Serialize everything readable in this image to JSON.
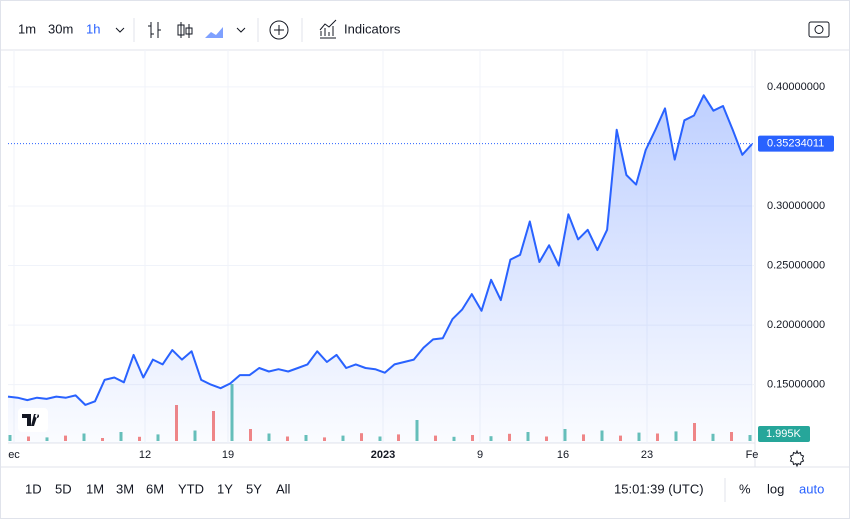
{
  "toolbar": {
    "intervals": [
      "1m",
      "30m",
      "1h"
    ],
    "indicators": "Indicators"
  },
  "chart_data": {
    "type": "area",
    "color": "#2962ff",
    "series": [
      {
        "values": [
          0.14,
          0.139,
          0.137,
          0.139,
          0.138,
          0.14,
          0.139,
          0.141,
          0.133,
          0.136,
          0.154,
          0.156,
          0.152,
          0.175,
          0.156,
          0.171,
          0.167,
          0.179,
          0.171,
          0.178,
          0.154,
          0.15,
          0.147,
          0.151,
          0.158,
          0.158,
          0.164,
          0.161,
          0.163,
          0.161,
          0.164,
          0.167,
          0.178,
          0.169,
          0.175,
          0.164,
          0.167,
          0.164,
          0.163,
          0.16,
          0.167,
          0.169,
          0.171,
          0.181,
          0.188,
          0.189,
          0.205,
          0.213,
          0.226,
          0.212,
          0.238,
          0.221,
          0.255,
          0.259,
          0.287,
          0.253,
          0.267,
          0.25,
          0.293,
          0.272,
          0.28,
          0.263,
          0.28,
          0.364,
          0.326,
          0.318,
          0.347,
          0.364,
          0.382,
          0.339,
          0.372,
          0.376,
          0.393,
          0.38,
          0.384,
          0.364,
          0.343,
          0.352
        ]
      }
    ],
    "ylim": [
      0.101,
      0.431
    ],
    "yticks": [
      {
        "value": 0.15,
        "label": "0.15000000"
      },
      {
        "value": 0.2,
        "label": "0.20000000"
      },
      {
        "value": 0.25,
        "label": "0.25000000"
      },
      {
        "value": 0.3,
        "label": "0.30000000"
      },
      {
        "value": 0.4,
        "label": "0.40000000"
      }
    ],
    "xticks": [
      "ec",
      "12",
      "19",
      "2023",
      "9",
      "16",
      "23",
      "Fe"
    ],
    "last_price": 0.35234011,
    "volume": [
      2000,
      1500,
      1200,
      1800,
      2500,
      1000,
      3000,
      1400,
      2200,
      12000,
      3500,
      10000,
      19000,
      4000,
      2500,
      1500,
      2000,
      1200,
      1800,
      2600,
      1500,
      2200,
      7000,
      1800,
      1400,
      2000,
      1600,
      2400,
      3000,
      1500,
      4000,
      2200,
      3500,
      1800,
      2800,
      2500,
      3200,
      6000,
      2400,
      3000,
      1995
    ],
    "volume_ylim": [
      0,
      20000
    ],
    "volume_colors": [
      "#26a69a",
      "#ef5350"
    ],
    "volume_last": {
      "value": 1995,
      "label": "1.995K"
    },
    "grid": true
  },
  "footer": {
    "ranges": [
      "1D",
      "5D",
      "1M",
      "3M",
      "6M",
      "YTD",
      "1Y",
      "5Y",
      "All"
    ],
    "clock": "15:01:39 (UTC)",
    "options": [
      "%",
      "log",
      "auto"
    ]
  }
}
